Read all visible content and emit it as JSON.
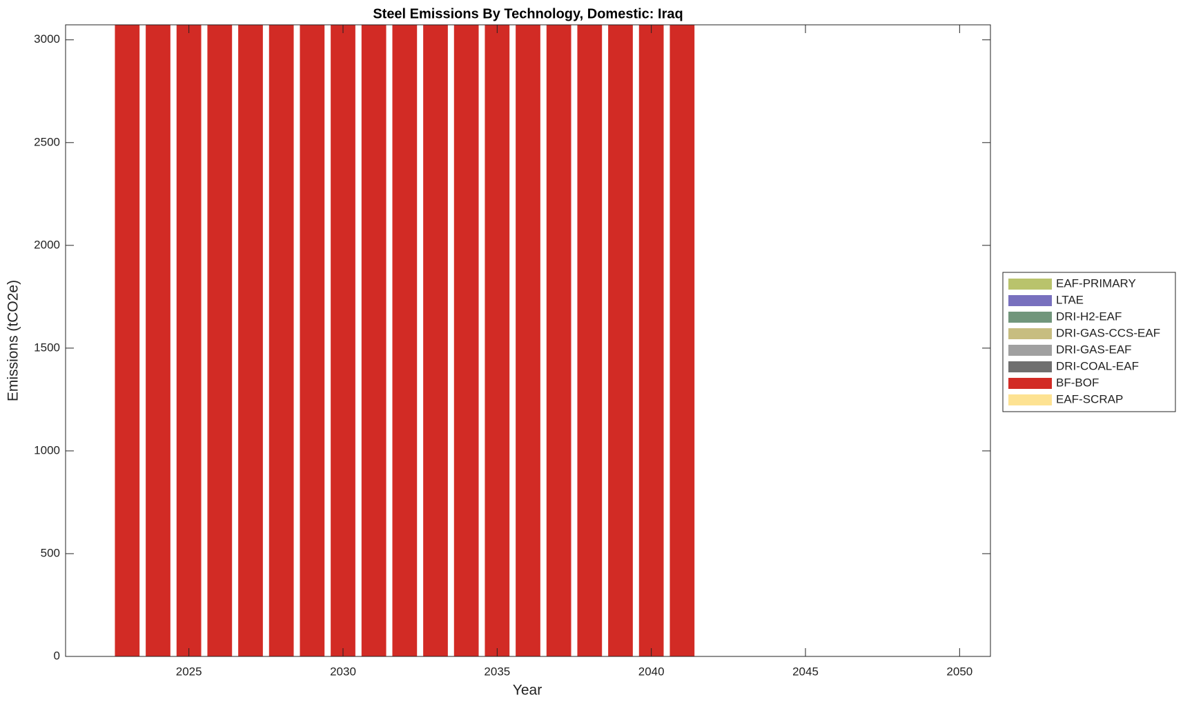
{
  "chart_data": {
    "type": "stacked-bar",
    "title": "Steel Emissions By Technology, Domestic: Iraq",
    "x_label": "Year",
    "y_label": "Emissions (tCO2e)",
    "x": [
      2023,
      2024,
      2025,
      2026,
      2027,
      2028,
      2029,
      2030,
      2031,
      2032,
      2033,
      2034,
      2035,
      2036,
      2037,
      2038,
      2039,
      2040,
      2041
    ],
    "series": [
      {
        "name": "EAF-PRIMARY",
        "color": "#b9c36c",
        "values": [
          0,
          0,
          0,
          0,
          0,
          0,
          0,
          0,
          0,
          0,
          0,
          0,
          0,
          0,
          0,
          0,
          0,
          0,
          0
        ]
      },
      {
        "name": "LTAE",
        "color": "#7870be",
        "values": [
          0,
          0,
          0,
          0,
          0,
          0,
          0,
          0,
          0,
          0,
          0,
          0,
          0,
          0,
          0,
          0,
          0,
          0,
          0
        ]
      },
      {
        "name": "DRI-H2-EAF",
        "color": "#71967b",
        "values": [
          0,
          0,
          0,
          0,
          0,
          0,
          0,
          0,
          0,
          0,
          0,
          0,
          0,
          0,
          0,
          0,
          0,
          0,
          0
        ]
      },
      {
        "name": "DRI-GAS-CCS-EAF",
        "color": "#c7bd80",
        "values": [
          0,
          0,
          0,
          0,
          0,
          0,
          0,
          0,
          0,
          0,
          0,
          0,
          0,
          0,
          0,
          0,
          0,
          0,
          0
        ]
      },
      {
        "name": "DRI-GAS-EAF",
        "color": "#a0a0a0",
        "values": [
          0,
          0,
          0,
          0,
          0,
          0,
          0,
          0,
          0,
          0,
          0,
          0,
          0,
          0,
          0,
          0,
          0,
          0,
          0
        ]
      },
      {
        "name": "DRI-COAL-EAF",
        "color": "#6f6f6f",
        "values": [
          0,
          0,
          0,
          0,
          0,
          0,
          0,
          0,
          0,
          0,
          0,
          0,
          0,
          0,
          0,
          0,
          0,
          0,
          0
        ]
      },
      {
        "name": "BF-BOF",
        "color": "#d22b25",
        "values": [
          3073,
          3073,
          3073,
          3073,
          3073,
          3073,
          3073,
          3073,
          3073,
          3073,
          3073,
          3073,
          3073,
          3073,
          3073,
          3073,
          3073,
          3073,
          3073
        ]
      },
      {
        "name": "EAF-SCRAP",
        "color": "#fde292",
        "values": [
          0,
          0,
          0,
          0,
          0,
          0,
          0,
          0,
          0,
          0,
          0,
          0,
          0,
          0,
          0,
          0,
          0,
          0,
          0
        ]
      }
    ],
    "xlim": [
      2021,
      2051
    ],
    "xticks": [
      2025,
      2030,
      2035,
      2040,
      2045,
      2050
    ],
    "ylim": [
      0,
      3073
    ],
    "yticks": [
      0,
      500,
      1000,
      1500,
      2000,
      2500,
      3000
    ],
    "grid": false,
    "legend": "east-outside"
  }
}
